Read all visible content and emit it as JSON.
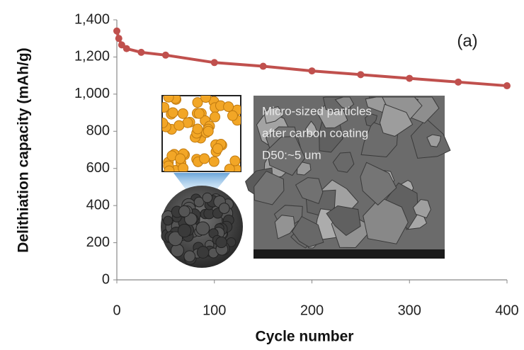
{
  "chart_data": {
    "type": "line",
    "panel_label": "(a)",
    "annotations": [
      "Micro-sized particles",
      "after carbon coating",
      "D50:~5 um"
    ],
    "x_label": "Cycle number",
    "y_label": "Delithiation capacity (mAh/g)",
    "x": [
      0,
      2,
      5,
      10,
      25,
      50,
      100,
      150,
      200,
      250,
      300,
      350,
      400
    ],
    "values": [
      1340,
      1300,
      1265,
      1245,
      1225,
      1210,
      1170,
      1150,
      1125,
      1105,
      1085,
      1065,
      1045
    ],
    "color": "#c0504d",
    "xlim": [
      0,
      400
    ],
    "xticks": [
      0,
      100,
      200,
      300,
      400
    ],
    "ylim": [
      0,
      1400
    ],
    "yticks": [
      0,
      200,
      400,
      600,
      800,
      {
        "value": 1000,
        "label": "1,000"
      },
      {
        "value": 1200,
        "label": "1,200"
      },
      {
        "value": 1400,
        "label": "1,400"
      }
    ]
  }
}
